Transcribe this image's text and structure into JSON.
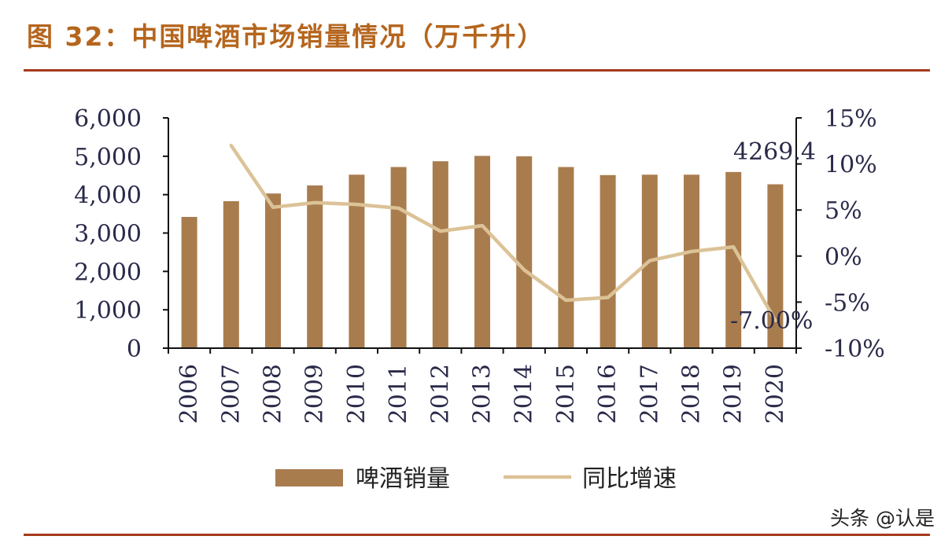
{
  "header": {
    "title": "图 32：中国啤酒市场销量情况（万千升）"
  },
  "watermark": "头条 @认是",
  "chart_data": {
    "type": "bar",
    "categories": [
      "2006",
      "2007",
      "2008",
      "2009",
      "2010",
      "2011",
      "2012",
      "2013",
      "2014",
      "2015",
      "2016",
      "2017",
      "2018",
      "2019",
      "2020"
    ],
    "series": [
      {
        "name": "啤酒销量",
        "type": "bar",
        "axis": "left",
        "color": "#a97c4e",
        "values": [
          3420,
          3830,
          4030,
          4240,
          4520,
          4720,
          4870,
          5010,
          5000,
          4720,
          4510,
          4520,
          4520,
          4590,
          4269.4
        ]
      },
      {
        "name": "同比增速",
        "type": "line",
        "axis": "right",
        "color": "#dcc297",
        "values": [
          null,
          12.0,
          5.3,
          5.8,
          5.6,
          5.2,
          2.7,
          3.3,
          -1.5,
          -4.8,
          -4.5,
          -0.5,
          0.5,
          1.0,
          -7.0
        ]
      }
    ],
    "y_left": {
      "min": 0,
      "max": 6000,
      "ticks": [
        "0",
        "1,000",
        "2,000",
        "3,000",
        "4,000",
        "5,000",
        "6,000"
      ]
    },
    "y_right": {
      "min": -10,
      "max": 15,
      "ticks": [
        "-10%",
        "-5%",
        "0%",
        "5%",
        "10%",
        "15%"
      ]
    },
    "annotations": [
      {
        "label": "4269.4",
        "series": "啤酒销量",
        "category": "2020"
      },
      {
        "label": "-7.00%",
        "series": "同比增速",
        "category": "2020"
      }
    ],
    "legend": [
      "啤酒销量",
      "同比增速"
    ],
    "legend_position": "bottom",
    "grid": false,
    "title": "图 32：中国啤酒市场销量情况（万千升）"
  }
}
